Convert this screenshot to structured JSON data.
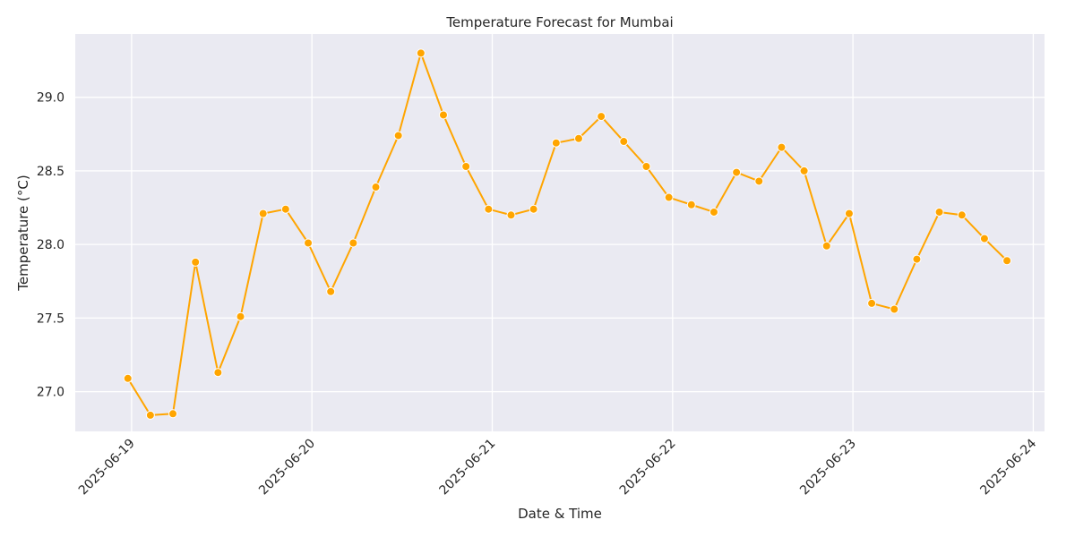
{
  "chart_data": {
    "type": "line",
    "title": "Temperature Forecast for Mumbai",
    "xlabel": "Date & Time",
    "ylabel": "Temperature (°C)",
    "x_ticks": [
      "2025-06-19",
      "2025-06-20",
      "2025-06-21",
      "2025-06-22",
      "2025-06-23",
      "2025-06-24"
    ],
    "y_ticks": [
      "27.0",
      "27.5",
      "28.0",
      "28.5",
      "29.0"
    ],
    "xlim": [
      "2025-06-18 16:30",
      "2025-06-24 01:30"
    ],
    "ylim": [
      26.73,
      29.43
    ],
    "grid": true,
    "colors": {
      "line": "#FFA500",
      "marker_edge": "#ffffff",
      "background": "#EAEAF2",
      "grid": "#ffffff"
    },
    "series": [
      {
        "x": [
          "2025-06-18 23:30",
          "2025-06-19 02:30",
          "2025-06-19 05:30",
          "2025-06-19 08:30",
          "2025-06-19 11:30",
          "2025-06-19 14:30",
          "2025-06-19 17:30",
          "2025-06-19 20:30",
          "2025-06-19 23:30",
          "2025-06-20 02:30",
          "2025-06-20 05:30",
          "2025-06-20 08:30",
          "2025-06-20 11:30",
          "2025-06-20 14:30",
          "2025-06-20 17:30",
          "2025-06-20 20:30",
          "2025-06-20 23:30",
          "2025-06-21 02:30",
          "2025-06-21 05:30",
          "2025-06-21 08:30",
          "2025-06-21 11:30",
          "2025-06-21 14:30",
          "2025-06-21 17:30",
          "2025-06-21 20:30",
          "2025-06-21 23:30",
          "2025-06-22 02:30",
          "2025-06-22 05:30",
          "2025-06-22 08:30",
          "2025-06-22 11:30",
          "2025-06-22 14:30",
          "2025-06-22 17:30",
          "2025-06-22 20:30",
          "2025-06-22 23:30",
          "2025-06-23 02:30",
          "2025-06-23 05:30",
          "2025-06-23 08:30",
          "2025-06-23 11:30",
          "2025-06-23 14:30",
          "2025-06-23 17:30",
          "2025-06-23 20:30"
        ],
        "y": [
          27.09,
          26.84,
          26.85,
          27.88,
          27.13,
          27.51,
          28.21,
          28.24,
          28.01,
          27.68,
          28.01,
          28.39,
          28.74,
          29.3,
          28.88,
          28.53,
          28.24,
          28.2,
          28.24,
          28.69,
          28.72,
          28.87,
          28.7,
          28.53,
          28.32,
          28.27,
          28.22,
          28.49,
          28.43,
          28.66,
          28.5,
          27.99,
          28.21,
          27.6,
          27.56,
          27.9,
          28.22,
          28.2,
          28.04,
          27.89
        ]
      }
    ]
  }
}
